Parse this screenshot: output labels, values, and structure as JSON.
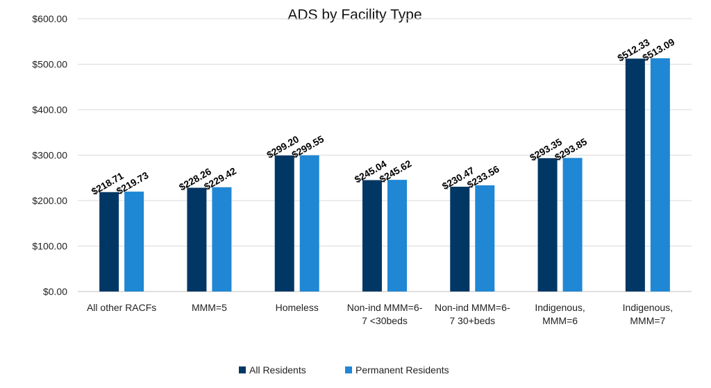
{
  "chart_data": {
    "type": "bar",
    "title": "ADS by Facility Type",
    "xlabel": "",
    "ylabel": "",
    "ylim": [
      0,
      600
    ],
    "yticks": [
      "$0.00",
      "$100.00",
      "$200.00",
      "$300.00",
      "$400.00",
      "$500.00",
      "$600.00"
    ],
    "ytick_values": [
      0,
      100,
      200,
      300,
      400,
      500,
      600
    ],
    "grid": true,
    "legend_position": "bottom",
    "categories": [
      [
        "All other RACFs"
      ],
      [
        "MMM=5"
      ],
      [
        "Homeless"
      ],
      [
        "Non-ind MMM=6-",
        "7 <30beds"
      ],
      [
        "Non-ind MMM=6-",
        "7 30+beds"
      ],
      [
        "Indigenous,",
        "MMM=6"
      ],
      [
        "Indigenous,",
        "MMM=7"
      ]
    ],
    "series": [
      {
        "name": "All Residents",
        "color": "#003764",
        "values": [
          218.71,
          228.26,
          299.2,
          245.04,
          230.47,
          293.35,
          512.33
        ],
        "labels": [
          "$218.71",
          "$228.26",
          "$299.20",
          "$245.04",
          "$230.47",
          "$293.35",
          "$512.33"
        ]
      },
      {
        "name": "Permanent Residents",
        "color": "#1f87d4",
        "values": [
          219.73,
          229.42,
          299.55,
          245.62,
          233.56,
          293.85,
          513.09
        ],
        "labels": [
          "$219.73",
          "$229.42",
          "$299.55",
          "$245.62",
          "$233.56",
          "$293.85",
          "$513.09"
        ]
      }
    ]
  }
}
